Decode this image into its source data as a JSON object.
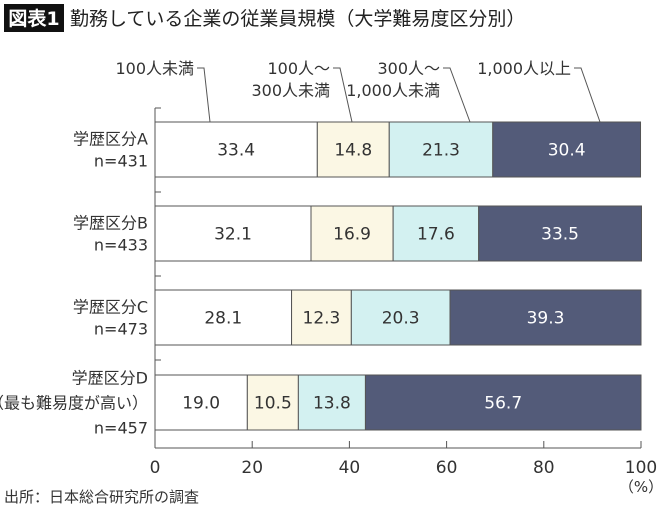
{
  "chart_data": {
    "type": "bar",
    "orientation": "horizontal",
    "stacked": true,
    "badge": "図表1",
    "title": "勤務している企業の従業員規模（大学難易度区分別）",
    "categories": [
      {
        "lines": [
          "学歴区分A",
          "n=431"
        ]
      },
      {
        "lines": [
          "学歴区分B",
          "n=433"
        ]
      },
      {
        "lines": [
          "学歴区分C",
          "n=473"
        ]
      },
      {
        "lines": [
          "学歴区分D",
          "（最も難易度が高い）",
          "n=457"
        ]
      }
    ],
    "series": [
      {
        "name": [
          "100人未満"
        ],
        "color": "#ffffff",
        "label_color": "#333333",
        "values": [
          33.4,
          32.1,
          28.1,
          19.0
        ]
      },
      {
        "name": [
          "100人～",
          "300人未満"
        ],
        "color": "#fbf7e4",
        "label_color": "#333333",
        "values": [
          14.8,
          16.9,
          12.3,
          10.5
        ]
      },
      {
        "name": [
          "300人～",
          "1,000人未満"
        ],
        "color": "#d3f1f1",
        "label_color": "#333333",
        "values": [
          21.3,
          17.6,
          20.3,
          13.8
        ]
      },
      {
        "name": [
          "1,000人以上"
        ],
        "color": "#535b79",
        "label_color": "#ffffff",
        "values": [
          30.4,
          33.5,
          39.3,
          56.7
        ]
      }
    ],
    "xlim": [
      0,
      100
    ],
    "xticks": [
      "0",
      "20",
      "40",
      "60",
      "80",
      "100"
    ],
    "xunit": "（%）",
    "grid": false,
    "legend": "top, with leader lines",
    "source": "出所：日本総合研究所の調査"
  }
}
